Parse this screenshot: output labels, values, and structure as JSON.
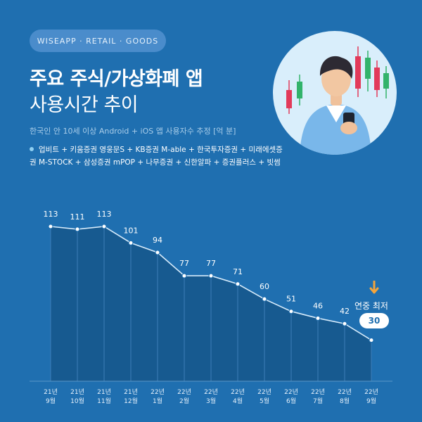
{
  "brand": "WISEAPP · RETAIL · GOODS",
  "title_line1": "주요 주식/가상화폐 앱",
  "title_line2": "사용시간 추이",
  "subtitle": "한국인 안 10세 이상 Android + iOS 앱 사용자수 추정 [억 분]",
  "apps_text": "업비트 + 키움증권 영웅문S + KB증권 M-able + 한국투자증권 + 미래에셋증권 M-STOCK + 삼성증권 mPOP + 나무증권 + 신한알파 + 증권플러스 + 빗썸",
  "annotation": {
    "label": "연중 최저",
    "value": "30"
  },
  "colors": {
    "background": "#1f6fb0",
    "area_fill": "#175a90",
    "line": "#d6ebfb",
    "marker_fill": "#ffffff",
    "accent_arrow": "#f3a43b",
    "badge_bg": "#ffffff",
    "badge_text": "#1f6fb0"
  },
  "illustration": {
    "icon": "person-with-phone-and-candlestick-chart"
  },
  "chart_data": {
    "type": "area",
    "categories": [
      "21년 9월",
      "21년 10월",
      "21년 11월",
      "21년 12월",
      "22년 1월",
      "22년 2월",
      "22년 3월",
      "22년 4월",
      "22년 5월",
      "22년 6월",
      "22년 7월",
      "22년 8월",
      "22년 9월"
    ],
    "categories_line1": [
      "21년",
      "21년",
      "21년",
      "21년",
      "22년",
      "22년",
      "22년",
      "22년",
      "22년",
      "22년",
      "22년",
      "22년",
      "22년"
    ],
    "categories_line2": [
      "9월",
      "10월",
      "11월",
      "12월",
      "1월",
      "2월",
      "3월",
      "4월",
      "5월",
      "6월",
      "7월",
      "8월",
      "9월"
    ],
    "values": [
      113,
      111,
      113,
      101,
      94,
      77,
      77,
      71,
      60,
      51,
      46,
      42,
      30
    ],
    "data_labels_shown": [
      true,
      true,
      true,
      true,
      true,
      true,
      true,
      true,
      true,
      true,
      true,
      true,
      false
    ],
    "ylim": [
      0,
      125
    ],
    "grid": false,
    "title": "",
    "xlabel": "",
    "ylabel": ""
  }
}
